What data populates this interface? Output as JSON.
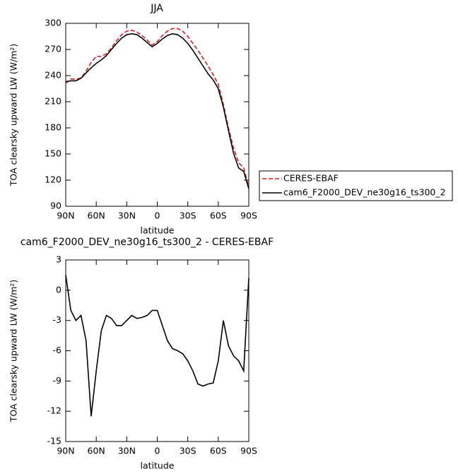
{
  "chart_data": [
    {
      "type": "line",
      "title": "JJA",
      "xlabel": "latitude",
      "ylabel": "TOA clearsky upward LW (W/m²)",
      "x": [
        90,
        85,
        80,
        75,
        70,
        65,
        60,
        55,
        50,
        45,
        40,
        35,
        30,
        25,
        20,
        15,
        10,
        5,
        0,
        -5,
        -10,
        -15,
        -20,
        -25,
        -30,
        -35,
        -40,
        -45,
        -50,
        -55,
        -60,
        -65,
        -70,
        -75,
        -80,
        -85,
        -90
      ],
      "xlim": [
        90,
        -90
      ],
      "xticks": [
        {
          "value": 90,
          "label": "90N"
        },
        {
          "value": 60,
          "label": "60N"
        },
        {
          "value": 30,
          "label": "30N"
        },
        0,
        {
          "value": -30,
          "label": "30S"
        },
        {
          "value": -60,
          "label": "60S"
        },
        {
          "value": -90,
          "label": "90S"
        }
      ],
      "ylim": [
        90,
        300
      ],
      "yticks": [
        90,
        120,
        150,
        180,
        210,
        240,
        270,
        300
      ],
      "series": [
        {
          "name": "CERES-EBAF",
          "color": "#e8191c",
          "line_style": "dashed",
          "values": [
            231,
            236,
            236,
            237,
            245,
            255,
            262,
            262,
            265,
            272,
            280,
            287,
            291,
            292,
            290,
            286,
            281,
            275,
            279,
            286,
            291,
            294,
            294,
            291,
            285,
            277,
            269,
            260,
            251,
            241,
            230,
            207,
            180,
            157,
            140,
            134,
            112
          ]
        },
        {
          "name": "cam6_F2000_DEV_ne30g16_ts300_2",
          "color": "#000000",
          "line_style": "solid",
          "values": [
            233,
            234,
            234,
            237,
            243,
            249,
            254,
            258,
            263,
            270,
            277,
            283,
            287,
            288,
            287,
            283,
            278,
            273,
            277,
            282,
            286,
            288,
            287,
            283,
            277,
            269,
            260,
            251,
            242,
            235,
            225,
            204,
            177,
            151,
            134,
            130,
            110
          ]
        }
      ]
    },
    {
      "type": "line",
      "title": "cam6_F2000_DEV_ne30g16_ts300_2 - CERES-EBAF",
      "xlabel": "latitude",
      "ylabel": "TOA clearsky upward LW (W/m²)",
      "x": [
        90,
        85,
        80,
        75,
        70,
        65,
        60,
        55,
        50,
        45,
        40,
        35,
        30,
        25,
        20,
        15,
        10,
        5,
        0,
        -5,
        -10,
        -15,
        -20,
        -25,
        -30,
        -35,
        -40,
        -45,
        -50,
        -55,
        -60,
        -65,
        -70,
        -75,
        -80,
        -85,
        -90
      ],
      "xlim": [
        90,
        -90
      ],
      "xticks": [
        {
          "value": 90,
          "label": "90N"
        },
        {
          "value": 60,
          "label": "60N"
        },
        {
          "value": 30,
          "label": "30N"
        },
        0,
        {
          "value": -30,
          "label": "30S"
        },
        {
          "value": -60,
          "label": "60S"
        },
        {
          "value": -90,
          "label": "90S"
        }
      ],
      "ylim": [
        -15,
        3
      ],
      "yticks": [
        -15,
        -12,
        -9,
        -6,
        -3,
        0,
        3
      ],
      "color": "#000000",
      "values": [
        1.5,
        -2,
        -3,
        -2.5,
        -5,
        -12.5,
        -8,
        -4,
        -2.5,
        -2.8,
        -3.5,
        -3.5,
        -3,
        -2.5,
        -2.8,
        -2.7,
        -2.5,
        -2,
        -2,
        -3.5,
        -5,
        -5.8,
        -6,
        -6.3,
        -7,
        -8,
        -9.3,
        -9.5,
        -9.3,
        -9.2,
        -7,
        -3,
        -5.5,
        -6.5,
        -7,
        -8,
        1.2
      ]
    }
  ]
}
